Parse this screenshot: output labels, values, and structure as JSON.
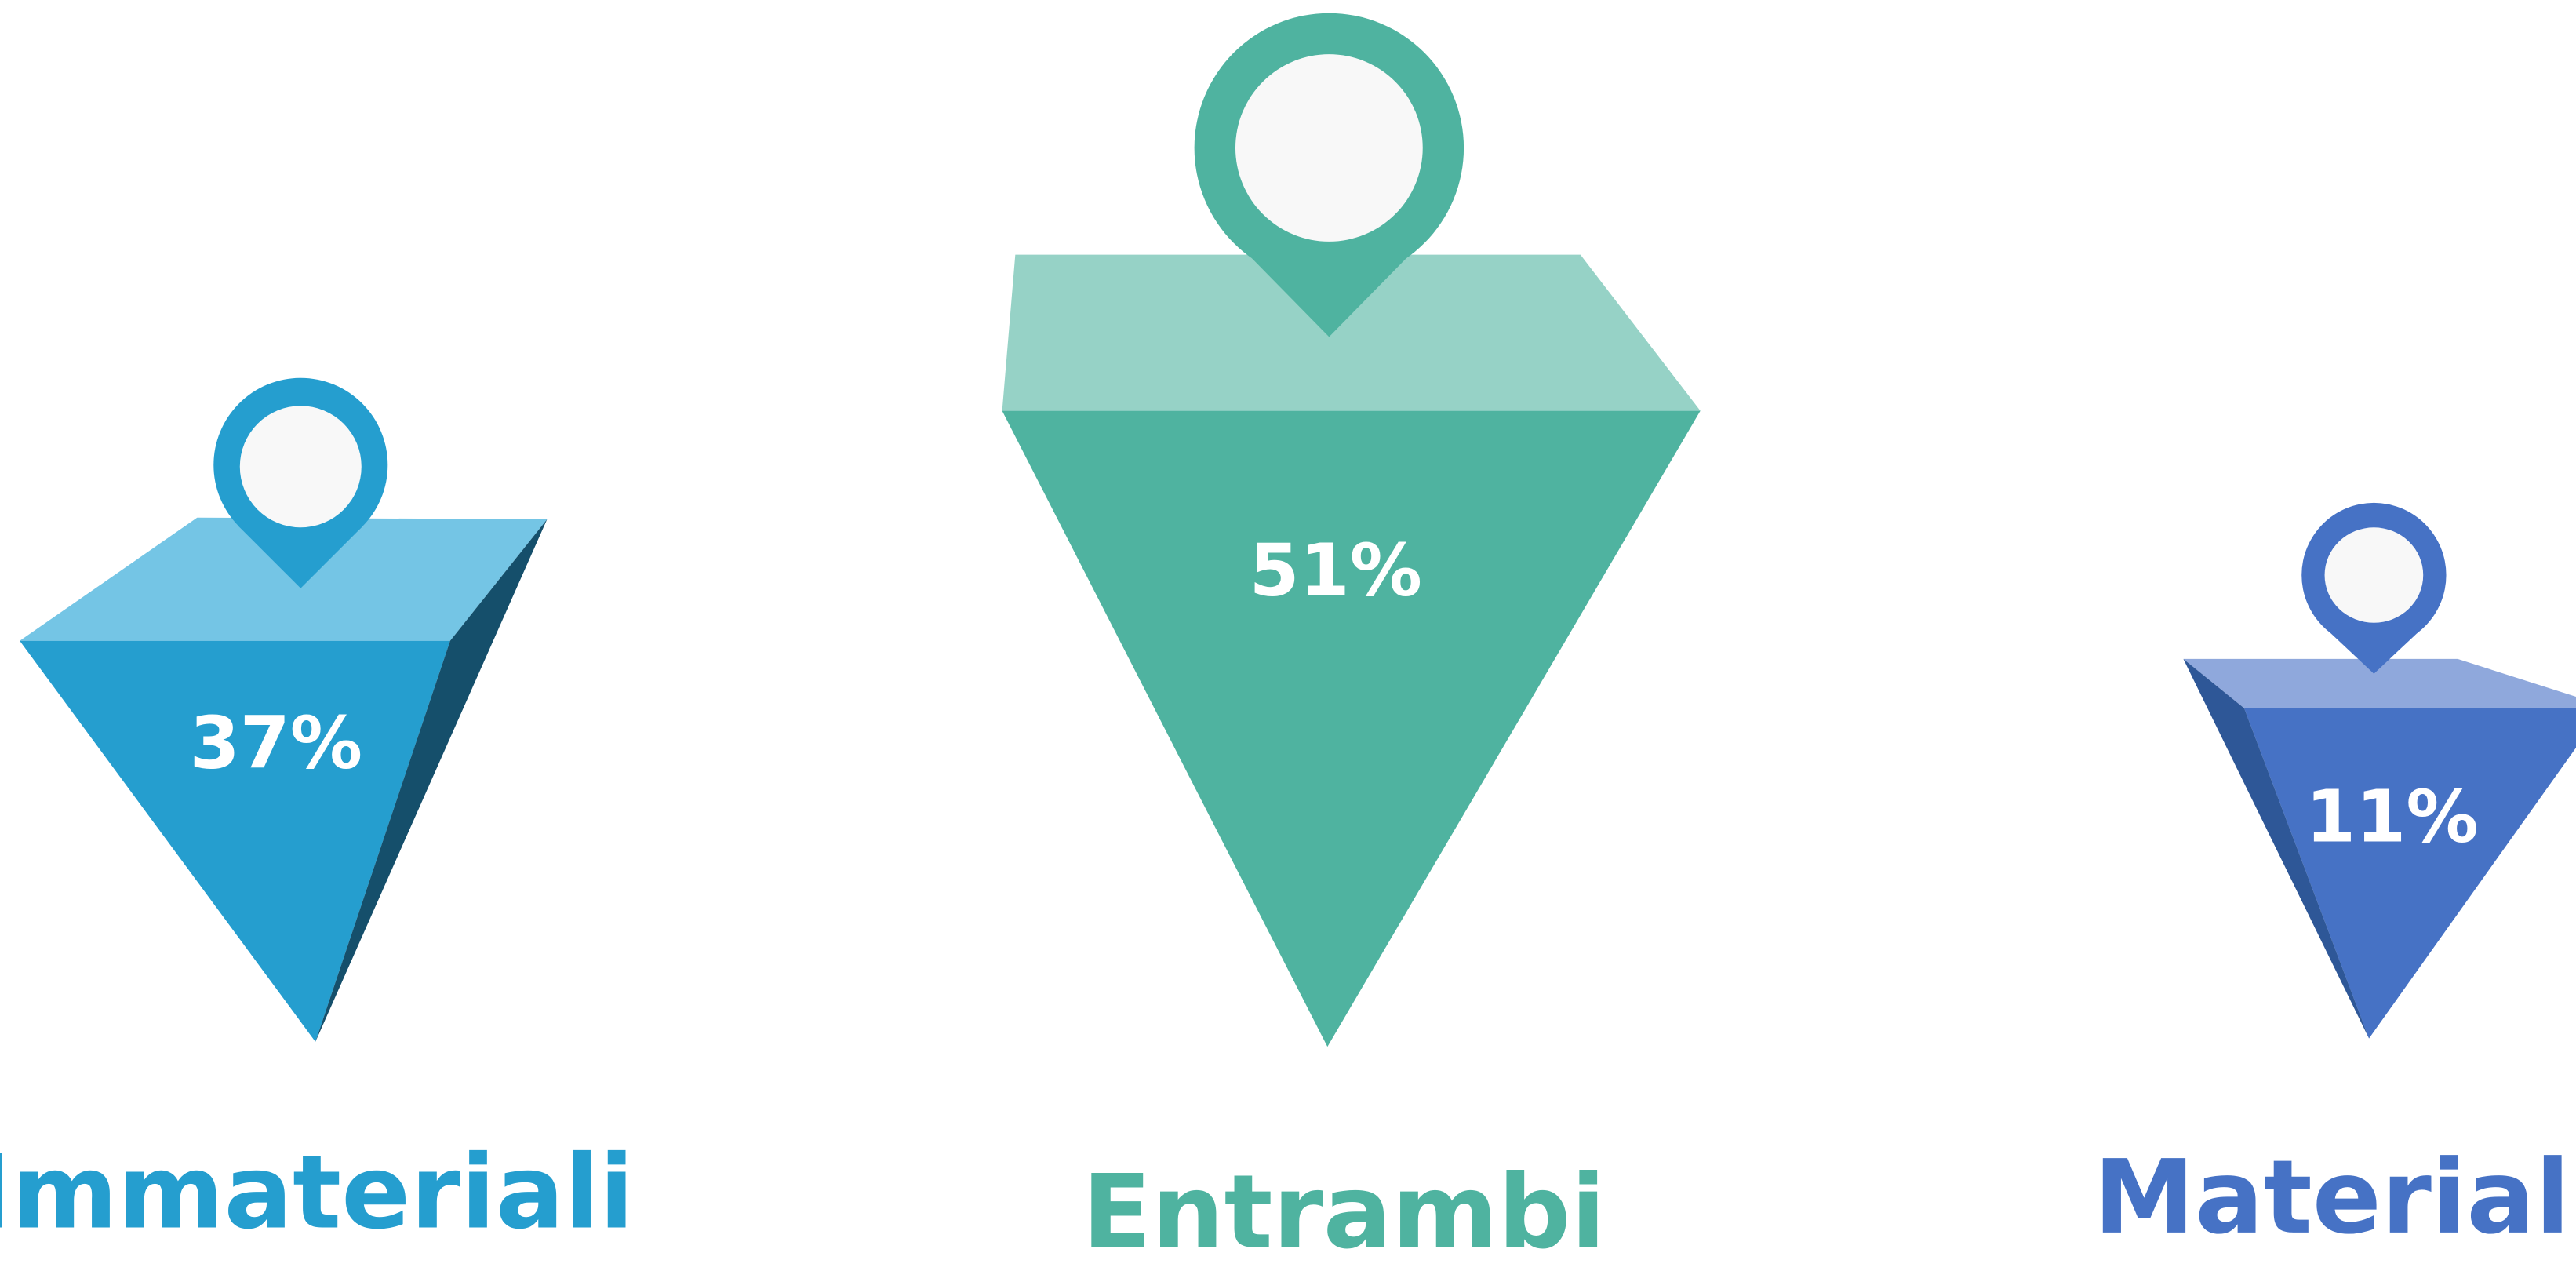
{
  "items": [
    {
      "label": "Immateriali",
      "value_label": "37%"
    },
    {
      "label": "Entrambi",
      "value_label": "51%"
    },
    {
      "label": "Materiali",
      "value_label": "11%"
    }
  ]
}
